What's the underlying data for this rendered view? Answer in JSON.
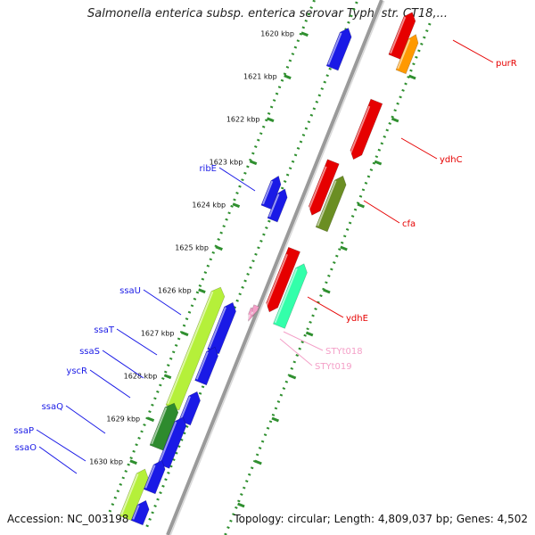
{
  "title": "Salmonella enterica subsp. enterica serovar Typhi str. CT18,...",
  "accession": "Accession: NC_003198",
  "topology": "Topology: circular; Length: 4,809,037 bp; Genes: 4,502",
  "colors": {
    "backbone": "#9a9a9a",
    "ticks": "#2f8f2f",
    "blue": "#1a1ae6",
    "red": "#e60000",
    "orange": "#ff9900",
    "olive": "#6b8e23",
    "lime": "#b5f03a",
    "mint": "#33ffaa",
    "darkgreen": "#2e8b2e",
    "pink": "#f4a0c8"
  },
  "kbp_labels": [
    "1620 kbp",
    "1621 kbp",
    "1622 kbp",
    "1623 kbp",
    "1624 kbp",
    "1625 kbp",
    "1626 kbp",
    "1627 kbp",
    "1628 kbp",
    "1629 kbp",
    "1630 kbp"
  ],
  "genes": {
    "right": [
      {
        "label": "purR",
        "color": "red"
      },
      {
        "label": "ydhC",
        "color": "red"
      },
      {
        "label": "cfa",
        "color": "red"
      },
      {
        "label": "ydhE",
        "color": "red"
      }
    ],
    "rna": [
      {
        "label": "STYt018",
        "color": "pink"
      },
      {
        "label": "STYt019",
        "color": "pink"
      }
    ],
    "left": [
      {
        "label": "ribE",
        "color": "blue"
      },
      {
        "label": "ssaU",
        "color": "blue"
      },
      {
        "label": "ssaT",
        "color": "blue"
      },
      {
        "label": "ssaS",
        "color": "blue"
      },
      {
        "label": "yscR",
        "color": "blue"
      },
      {
        "label": "ssaQ",
        "color": "blue"
      },
      {
        "label": "ssaP",
        "color": "blue"
      },
      {
        "label": "ssaO",
        "color": "blue"
      }
    ]
  }
}
